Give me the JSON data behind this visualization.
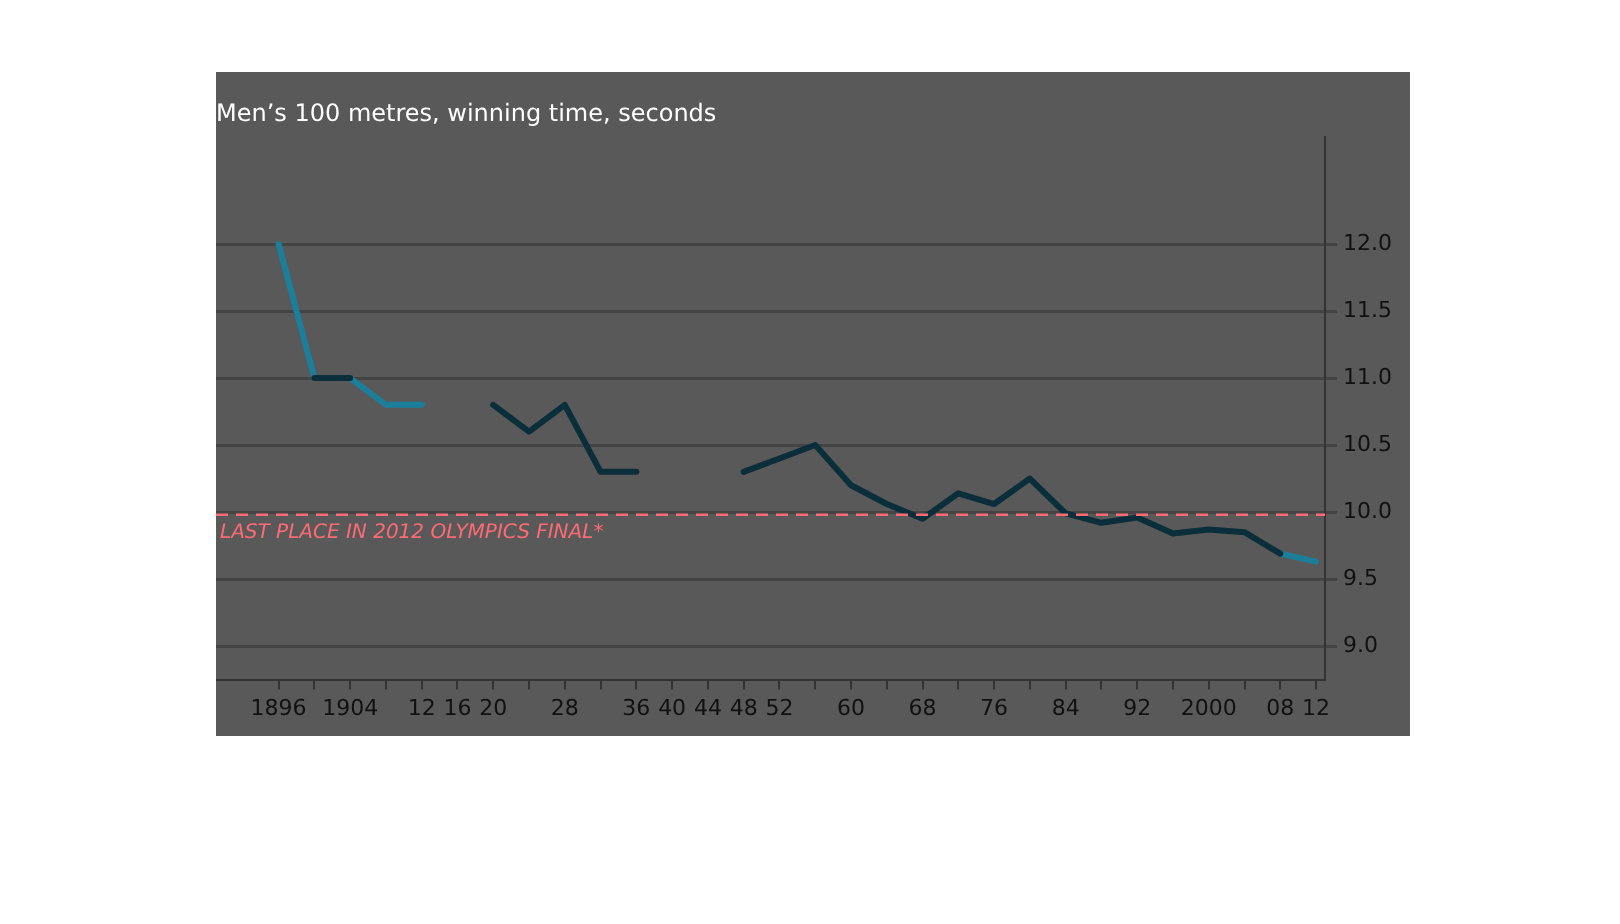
{
  "chart_data": {
    "type": "line",
    "title": "Men’s 100 metres, winning time, seconds",
    "series": [
      {
        "color": "#0b2f3a",
        "x": [
          1900,
          1904,
          1912,
          1920,
          1924,
          1928,
          1932,
          1936,
          1940,
          1948,
          1952,
          1956,
          1960,
          1964,
          1968,
          1972,
          1976,
          1980,
          1984,
          1988,
          1992,
          1996,
          2000,
          2004,
          2008
        ],
        "values": [
          11.0,
          11.0,
          null,
          10.8,
          10.6,
          10.8,
          10.3,
          10.3,
          null,
          10.3,
          10.4,
          10.5,
          10.2,
          10.06,
          9.95,
          10.14,
          10.06,
          10.25,
          9.99,
          9.92,
          9.96,
          9.84,
          9.87,
          9.85,
          9.69
        ]
      },
      {
        "color": "#1b7f9c",
        "x": [
          1896,
          1900,
          1902,
          1904,
          1908,
          1912,
          1960,
          2008,
          2012
        ],
        "values": [
          12.0,
          11.0,
          null,
          11.0,
          10.8,
          10.8,
          null,
          9.69,
          9.63
        ]
      }
    ],
    "xlim": [
      1889,
      2013
    ],
    "xticks": [
      {
        "value": 1896,
        "label": "1896"
      },
      {
        "value": 1900,
        "label": null
      },
      {
        "value": 1904,
        "label": "1904"
      },
      {
        "value": 1908,
        "label": null
      },
      {
        "value": 1912,
        "label": "12"
      },
      {
        "value": 1916,
        "label": "16"
      },
      {
        "value": 1920,
        "label": "20"
      },
      {
        "value": 1924,
        "label": null
      },
      {
        "value": 1928,
        "label": "28"
      },
      {
        "value": 1932,
        "label": null
      },
      {
        "value": 1936,
        "label": "36"
      },
      {
        "value": 1940,
        "label": "40"
      },
      {
        "value": 1944,
        "label": "44"
      },
      {
        "value": 1948,
        "label": "48"
      },
      {
        "value": 1952,
        "label": "52"
      },
      {
        "value": 1956,
        "label": null
      },
      {
        "value": 1960,
        "label": "60"
      },
      {
        "value": 1964,
        "label": null
      },
      {
        "value": 1968,
        "label": "68"
      },
      {
        "value": 1972,
        "label": null
      },
      {
        "value": 1976,
        "label": "76"
      },
      {
        "value": 1980,
        "label": null
      },
      {
        "value": 1984,
        "label": "84"
      },
      {
        "value": 1988,
        "label": null
      },
      {
        "value": 1992,
        "label": "92"
      },
      {
        "value": 1996,
        "label": null
      },
      {
        "value": 2000,
        "label": "2000"
      },
      {
        "value": 2004,
        "label": null
      },
      {
        "value": 2008,
        "label": "08"
      },
      {
        "value": 2012,
        "label": "12"
      }
    ],
    "ylim": [
      8.75,
      12.8
    ],
    "yticks": [
      {
        "value": 9,
        "label": "9.0"
      },
      {
        "value": 9.5,
        "label": "9.5"
      },
      {
        "value": 10,
        "label": "10.0"
      },
      {
        "value": 10.5,
        "label": "10.5"
      },
      {
        "value": 11,
        "label": "11.0"
      },
      {
        "value": 11.5,
        "label": "11.5"
      },
      {
        "value": 12,
        "label": "12.0"
      }
    ],
    "ref_lines": [
      {
        "axis": "y",
        "value": 9.98,
        "label": "LAST PLACE IN 2012 OLYMPICS FINAL*",
        "color": "#ff6b74",
        "line_style": "dashed"
      }
    ],
    "grid": "y",
    "legend": false,
    "marker": "none",
    "line_style": "solid"
  }
}
